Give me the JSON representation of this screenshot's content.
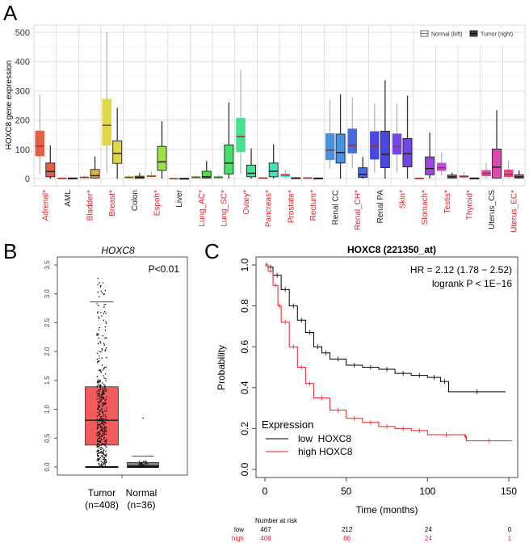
{
  "panels": {
    "a": "A",
    "b": "B",
    "c": "C"
  },
  "chart_data": [
    {
      "type": "box",
      "panel": "A",
      "ylabel": "HOXC8 gene expression",
      "ylim": [
        0,
        500
      ],
      "yticks": [
        "0",
        "100",
        "200",
        "300",
        "400",
        "500"
      ],
      "grid": true,
      "legend": {
        "placement": "top-right",
        "entries": [
          "Normal (left)",
          "Tumor (right)"
        ]
      },
      "label_colors": {
        "significant": "#e8202a",
        "not_significant": "#222222"
      },
      "box_stats_order": [
        "min",
        "q1",
        "median",
        "q3",
        "max"
      ],
      "categories": [
        {
          "label": "Adrenal*",
          "sig": true,
          "normal": [
            16,
            77,
            111,
            163,
            288
          ],
          "tumor": [
            0,
            6,
            24,
            53,
            113
          ]
        },
        {
          "label": "AML",
          "sig": false,
          "normal": [
            0,
            0,
            1,
            2,
            3
          ],
          "tumor": [
            0,
            0,
            1,
            2,
            3
          ]
        },
        {
          "label": "Bladder*",
          "sig": true,
          "normal": [
            0,
            2,
            4,
            6,
            10
          ],
          "tumor": [
            0,
            2,
            10,
            31,
            76
          ]
        },
        {
          "label": "Breast*",
          "sig": true,
          "normal": [
            20,
            113,
            182,
            272,
            500
          ],
          "tumor": [
            0,
            52,
            86,
            129,
            242
          ]
        },
        {
          "label": "Colon",
          "sig": false,
          "normal": [
            0,
            2,
            4,
            7,
            12
          ],
          "tumor": [
            0,
            1,
            4,
            8,
            20
          ]
        },
        {
          "label": "Espoh*",
          "sig": true,
          "normal": [
            3,
            6,
            8,
            11,
            22
          ],
          "tumor": [
            0,
            28,
            57,
            110,
            196
          ]
        },
        {
          "label": "Liver",
          "sig": false,
          "normal": [
            0,
            0,
            0,
            1,
            2
          ],
          "tumor": [
            0,
            0,
            0,
            1,
            2
          ]
        },
        {
          "label": "Lung_AC*",
          "sig": true,
          "normal": [
            0,
            2,
            4,
            7,
            12
          ],
          "tumor": [
            0,
            2,
            6,
            25,
            60
          ]
        },
        {
          "label": "Lung_SC*",
          "sig": true,
          "normal": [
            0,
            2,
            4,
            7,
            12
          ],
          "tumor": [
            0,
            16,
            53,
            115,
            260
          ]
        },
        {
          "label": "Ovary*",
          "sig": true,
          "normal": [
            16,
            91,
            144,
            207,
            371
          ],
          "tumor": [
            0,
            6,
            18,
            46,
            103
          ]
        },
        {
          "label": "Pancreas*",
          "sig": true,
          "normal": [
            0,
            1,
            2,
            3,
            4
          ],
          "tumor": [
            0,
            6,
            25,
            53,
            117
          ]
        },
        {
          "label": "Prostate*",
          "sig": true,
          "normal": [
            2,
            6,
            12,
            16,
            30
          ],
          "tumor": [
            0,
            1,
            2,
            3,
            5
          ]
        },
        {
          "label": "Rectum*",
          "sig": true,
          "normal": [
            0,
            1,
            2,
            3,
            5
          ],
          "tumor": [
            0,
            0,
            1,
            2,
            3
          ]
        },
        {
          "label": "Renal CC",
          "sig": false,
          "normal": [
            34,
            64,
            97,
            154,
            269
          ],
          "tumor": [
            0,
            53,
            89,
            152,
            288
          ]
        },
        {
          "label": "Renal_CH*",
          "sig": true,
          "normal": [
            34,
            87,
            113,
            170,
            277
          ],
          "tumor": [
            0,
            4,
            14,
            37,
            74
          ]
        },
        {
          "label": "Renal PA",
          "sig": false,
          "normal": [
            20,
            66,
            111,
            161,
            258
          ],
          "tumor": [
            0,
            37,
            83,
            162,
            336
          ]
        },
        {
          "label": "Skin*",
          "sig": true,
          "normal": [
            20,
            83,
            109,
            153,
            256
          ],
          "tumor": [
            0,
            40,
            85,
            137,
            283
          ]
        },
        {
          "label": "Stomach*",
          "sig": true,
          "normal": [
            0,
            0,
            1,
            2,
            3
          ],
          "tumor": [
            0,
            13,
            34,
            74,
            157
          ]
        },
        {
          "label": "Testis*",
          "sig": true,
          "normal": [
            11,
            27,
            37,
            53,
            90
          ],
          "tumor": [
            0,
            2,
            6,
            12,
            20
          ]
        },
        {
          "label": "Thyroid*",
          "sig": true,
          "normal": [
            2,
            4,
            7,
            10,
            22
          ],
          "tumor": [
            0,
            0,
            1,
            2,
            3
          ]
        },
        {
          "label": "Uterus_CS",
          "sig": false,
          "normal": [
            0,
            9,
            18,
            28,
            54
          ],
          "tumor": [
            0,
            2,
            39,
            101,
            234
          ]
        },
        {
          "label": "Uterus_EC*",
          "sig": true,
          "normal": [
            0,
            6,
            13,
            30,
            62
          ],
          "tumor": [
            0,
            2,
            6,
            13,
            28
          ]
        }
      ]
    },
    {
      "type": "box",
      "panel": "B",
      "title": "HOXC8",
      "annotation": "P<0.01",
      "ylim": [
        0,
        3.5
      ],
      "yticks": [
        "0.0",
        "0.5",
        "1.0",
        "1.5",
        "2.0",
        "2.5",
        "3.0",
        "3.5"
      ],
      "box_stats_order": [
        "min",
        "q1",
        "median",
        "q3",
        "max"
      ],
      "groups": [
        {
          "label": "Tumor",
          "n_label": "(n=408)",
          "color": "#f15b5b",
          "stats": [
            0,
            0.38,
            0.81,
            1.39,
            2.86
          ]
        },
        {
          "label": "Normal",
          "n_label": "(n=36)",
          "color": "#808080",
          "stats": [
            0,
            0,
            0.02,
            0.08,
            0.19
          ]
        }
      ]
    },
    {
      "type": "line",
      "subtype": "kaplan-meier",
      "panel": "C",
      "title": "HOXC8 (221350_at)",
      "xlabel": "Time (months)",
      "ylabel": "Probability",
      "xlim": [
        0,
        150
      ],
      "ylim": [
        0,
        1
      ],
      "xticks": [
        "0",
        "50",
        "100",
        "150"
      ],
      "yticks": [
        "0.0",
        "0.2",
        "0.4",
        "0.6",
        "0.8",
        "1.0"
      ],
      "annotations": [
        "HR = 2.12 (1.78 − 2.52)",
        "logrank P < 1E−16"
      ],
      "legend": {
        "title": "Expression",
        "placement": "bottom-left"
      },
      "series": [
        {
          "name": "low  HOXC8",
          "color": "#000000",
          "x": [
            0,
            2,
            5,
            10,
            15,
            20,
            25,
            30,
            35,
            40,
            50,
            60,
            70,
            80,
            90,
            100,
            108,
            113,
            148
          ],
          "y": [
            1,
            0.99,
            0.95,
            0.88,
            0.8,
            0.73,
            0.67,
            0.6,
            0.57,
            0.54,
            0.51,
            0.5,
            0.49,
            0.47,
            0.46,
            0.45,
            0.43,
            0.38,
            0.38
          ]
        },
        {
          "name": "high HOXC8",
          "color": "#e8202a",
          "x": [
            0,
            2,
            5,
            8,
            10,
            15,
            20,
            25,
            30,
            40,
            50,
            60,
            70,
            80,
            90,
            100,
            123,
            124,
            152
          ],
          "y": [
            1,
            0.97,
            0.9,
            0.8,
            0.72,
            0.6,
            0.5,
            0.42,
            0.35,
            0.29,
            0.25,
            0.23,
            0.21,
            0.2,
            0.19,
            0.17,
            0.16,
            0.14,
            0.14
          ]
        }
      ],
      "risk_table": {
        "title": "Number at risk",
        "times": [
          0,
          50,
          100,
          150
        ],
        "rows": [
          {
            "label": "low",
            "color": "#000000",
            "values": [
              "467",
              "212",
              "24",
              "0"
            ]
          },
          {
            "label": "high",
            "color": "#e8202a",
            "values": [
              "408",
              "86",
              "24",
              "1"
            ]
          }
        ]
      }
    }
  ]
}
